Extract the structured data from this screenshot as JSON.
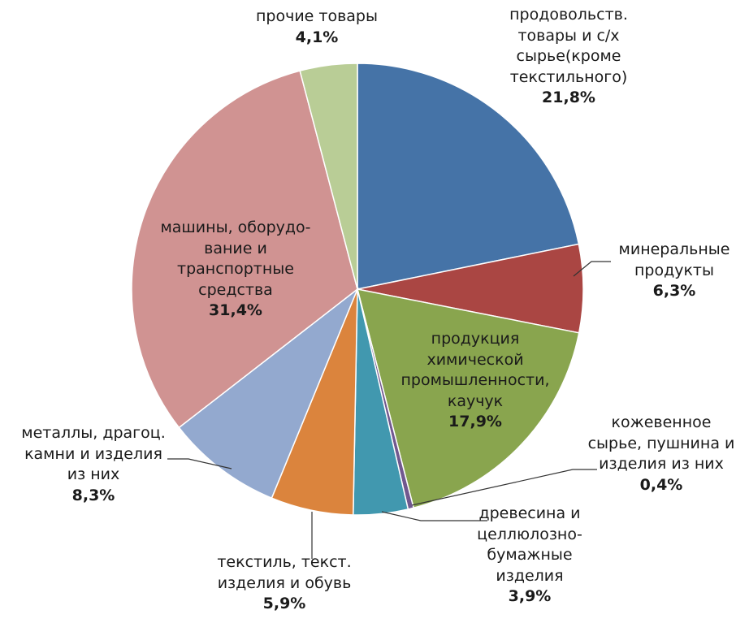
{
  "chart_data": {
    "type": "pie",
    "title": "",
    "start_angle_deg": 0,
    "direction": "clockwise",
    "slices": [
      {
        "label_lines": [
          "продовольств.",
          "товары и с/х",
          "сырье(кроме",
          "текстильного)"
        ],
        "value": 21.8,
        "value_label": "21,8%",
        "color": "#4573a7"
      },
      {
        "label_lines": [
          "минеральные",
          "продукты"
        ],
        "value": 6.3,
        "value_label": "6,3%",
        "color": "#aa4643"
      },
      {
        "label_lines": [
          "продукция",
          "химической",
          "промышленности,",
          "каучук"
        ],
        "value": 17.9,
        "value_label": "17,9%",
        "color": "#89a54e"
      },
      {
        "label_lines": [
          "кожевенное",
          "сырье, пушнина и",
          "изделия из них"
        ],
        "value": 0.4,
        "value_label": "0,4%",
        "color": "#71588f"
      },
      {
        "label_lines": [
          "древесина и",
          "целлюлозно-",
          "бумажные",
          "изделия"
        ],
        "value": 3.9,
        "value_label": "3,9%",
        "color": "#4198af"
      },
      {
        "label_lines": [
          "текстиль, текст.",
          "изделия  и обувь"
        ],
        "value": 5.9,
        "value_label": "5,9%",
        "color": "#db843d"
      },
      {
        "label_lines": [
          "металлы, драгоц.",
          "камни и изделия",
          "из них"
        ],
        "value": 8.3,
        "value_label": "8,3%",
        "color": "#93a9cf"
      },
      {
        "label_lines": [
          "машины, оборудо-",
          "вание и",
          "транспортные",
          "средства"
        ],
        "value": 31.4,
        "value_label": "31,4%",
        "color": "#d09392"
      },
      {
        "label_lines": [
          "прочие товары"
        ],
        "value": 4.1,
        "value_label": "4,1%",
        "color": "#b9cd96"
      }
    ]
  }
}
